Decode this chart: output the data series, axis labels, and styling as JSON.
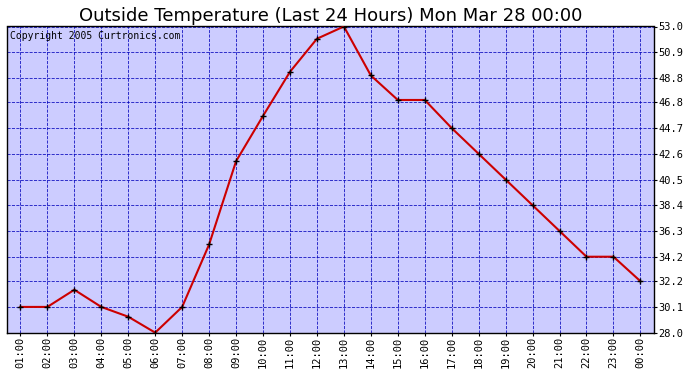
{
  "title": "Outside Temperature (Last 24 Hours) Mon Mar 28 00:00",
  "copyright": "Copyright 2005 Curtronics.com",
  "x_labels": [
    "01:00",
    "02:00",
    "03:00",
    "04:00",
    "05:00",
    "06:00",
    "07:00",
    "08:00",
    "09:00",
    "10:00",
    "11:00",
    "12:00",
    "13:00",
    "14:00",
    "15:00",
    "16:00",
    "17:00",
    "18:00",
    "19:00",
    "20:00",
    "21:00",
    "22:00",
    "23:00",
    "00:00"
  ],
  "y_values": [
    30.1,
    30.1,
    31.5,
    30.1,
    29.3,
    28.0,
    30.1,
    35.2,
    42.0,
    45.7,
    49.3,
    52.0,
    53.0,
    49.0,
    47.0,
    47.0,
    44.7,
    42.6,
    40.5,
    38.4,
    36.3,
    34.2,
    34.2,
    32.2
  ],
  "line_color": "#cc0000",
  "marker_color": "#000000",
  "bg_color": "#ffffff",
  "plot_bg_color": "#ccccff",
  "grid_color": "#0000bb",
  "y_ticks": [
    28.0,
    30.1,
    32.2,
    34.2,
    36.3,
    38.4,
    40.5,
    42.6,
    44.7,
    46.8,
    48.8,
    50.9,
    53.0
  ],
  "y_min": 28.0,
  "y_max": 53.0,
  "title_fontsize": 13,
  "copyright_fontsize": 7,
  "tick_fontsize": 7.5,
  "border_color": "#000000"
}
